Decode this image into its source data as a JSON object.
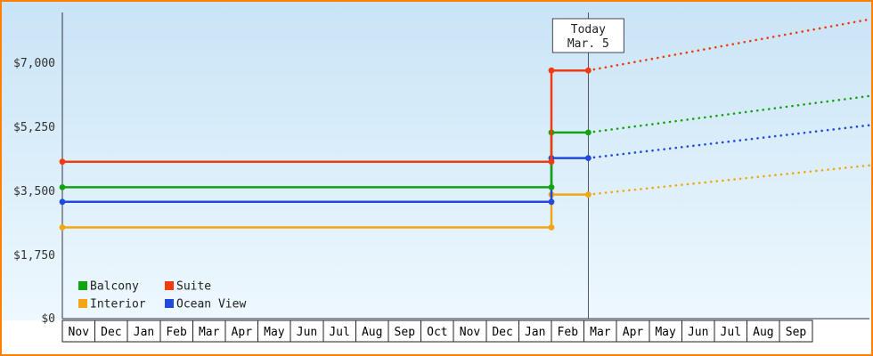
{
  "frame": {
    "border_color": "#ff8000",
    "plot_bg_top": "#c9e4f6",
    "plot_bg_bottom": "#eef8fe"
  },
  "chart_data": {
    "type": "line",
    "title": "",
    "x_categories": [
      "Nov",
      "Dec",
      "Jan",
      "Feb",
      "Mar",
      "Apr",
      "May",
      "Jun",
      "Jul",
      "Aug",
      "Sep",
      "Oct",
      "Nov",
      "Dec",
      "Jan",
      "Feb",
      "Mar",
      "Apr",
      "May",
      "Jun",
      "Jul",
      "Aug",
      "Sep"
    ],
    "y_ticks": [
      "$0",
      "$1,750",
      "$3,500",
      "$5,250",
      "$7,000"
    ],
    "y_tick_values": [
      0,
      1750,
      3500,
      5250,
      7000
    ],
    "ylim": [
      0,
      8400
    ],
    "grid": false,
    "today_marker": {
      "line1": "Today",
      "line2": "Mar. 5",
      "month_index": 16,
      "day_fraction": 0.13
    },
    "change_month_index": 15,
    "series": [
      {
        "name": "Interior",
        "color": "#f1a616",
        "past_value": 2500,
        "current_value": 3400,
        "projected_value": 4200
      },
      {
        "name": "Ocean View",
        "color": "#2149dd",
        "past_value": 3200,
        "current_value": 4400,
        "projected_value": 5300
      },
      {
        "name": "Balcony",
        "color": "#12a312",
        "past_value": 3600,
        "current_value": 5100,
        "projected_value": 6100
      },
      {
        "name": "Suite",
        "color": "#f13a10",
        "past_value": 4300,
        "current_value": 6800,
        "projected_value": 8200
      }
    ],
    "legend": {
      "position": "bottom-left",
      "items": [
        {
          "label": "Balcony",
          "color": "#12a312",
          "row": 0,
          "col": 0
        },
        {
          "label": "Suite",
          "color": "#f13a10",
          "row": 0,
          "col": 1
        },
        {
          "label": "Interior",
          "color": "#f1a616",
          "row": 1,
          "col": 0
        },
        {
          "label": "Ocean View",
          "color": "#2149dd",
          "row": 1,
          "col": 1
        }
      ]
    }
  }
}
